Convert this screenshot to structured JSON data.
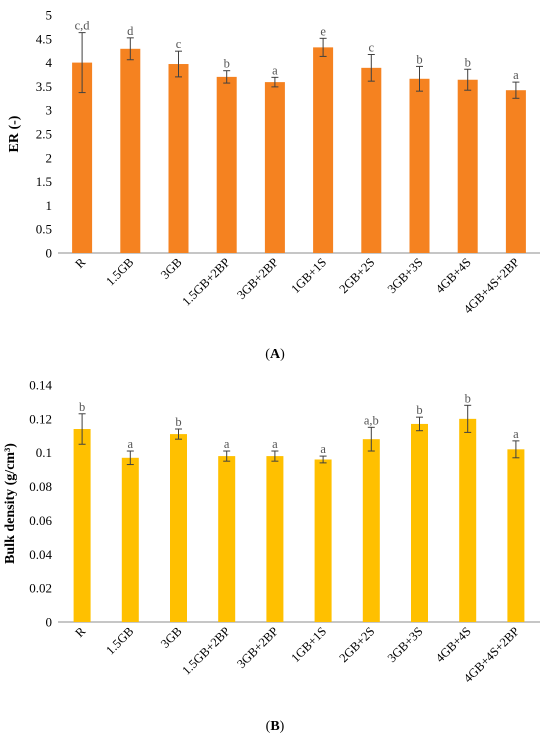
{
  "chart_data": [
    {
      "type": "bar",
      "panel": "A",
      "ylabel": "ER (-)",
      "ylim": [
        0,
        5
      ],
      "yticks": [
        "0",
        "0.5",
        "1",
        "1.5",
        "2",
        "2.5",
        "3",
        "3.5",
        "4",
        "4.5",
        "5"
      ],
      "categories": [
        "R",
        "1.5GB",
        "3GB",
        "1.5GB+2BP",
        "3GB+2BP",
        "1GB+1S",
        "2GB+2S",
        "3GB+3S",
        "4GB+4S",
        "4GB+4S+2BP"
      ],
      "values": [
        4.0,
        4.29,
        3.97,
        3.7,
        3.59,
        4.32,
        3.89,
        3.66,
        3.64,
        3.42
      ],
      "errors": [
        0.63,
        0.23,
        0.27,
        0.13,
        0.1,
        0.19,
        0.28,
        0.26,
        0.22,
        0.17
      ],
      "letters": [
        "c,d",
        "d",
        "c",
        "b",
        "a",
        "e",
        "c",
        "b",
        "b",
        "a"
      ],
      "color": "#F58220"
    },
    {
      "type": "bar",
      "panel": "B",
      "ylabel": "Bulk density (g/cm³)",
      "ylim": [
        0,
        0.14
      ],
      "yticks": [
        "0",
        "0.02",
        "0.04",
        "0.06",
        "0.08",
        "0.1",
        "0.12",
        "0.14"
      ],
      "categories": [
        "R",
        "1.5GB",
        "3GB",
        "1.5GB+2BP",
        "3GB+2BP",
        "1GB+1S",
        "2GB+2S",
        "3GB+3S",
        "4GB+4S",
        "4GB+4S+2BP"
      ],
      "values": [
        0.114,
        0.097,
        0.111,
        0.098,
        0.098,
        0.096,
        0.108,
        0.117,
        0.12,
        0.102
      ],
      "errors": [
        0.009,
        0.004,
        0.003,
        0.003,
        0.003,
        0.002,
        0.007,
        0.004,
        0.008,
        0.005
      ],
      "letters": [
        "b",
        "a",
        "b",
        "a",
        "a",
        "a",
        "a,b",
        "b",
        "b",
        "a"
      ],
      "color": "#FFC000"
    }
  ],
  "captions": {
    "a": {
      "open": "(",
      "letter": "A",
      "close": ")"
    },
    "b": {
      "open": "(",
      "letter": "B",
      "close": ")"
    }
  }
}
